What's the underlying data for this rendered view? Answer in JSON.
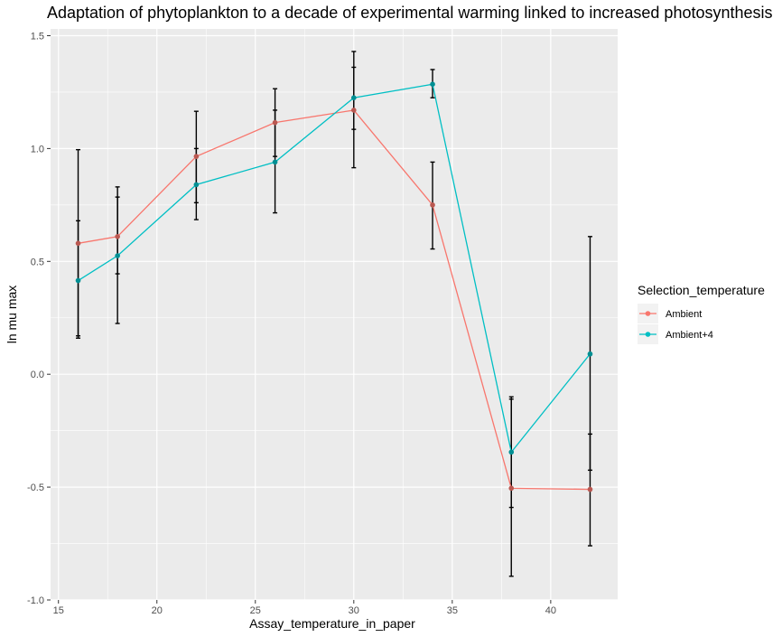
{
  "chart_data": {
    "type": "line",
    "title": "Adaptation of phytoplankton to a decade of experimental warming linked to increased photosynthesis",
    "xlabel": "Assay_temperature_in_paper",
    "ylabel": "ln mu max",
    "xlim": [
      14.6,
      43.4
    ],
    "ylim": [
      -1.0,
      1.53
    ],
    "x_ticks": [
      15,
      20,
      25,
      30,
      35,
      40
    ],
    "x_tick_labels": [
      "15",
      "20",
      "25",
      "30",
      "35",
      "40"
    ],
    "y_ticks": [
      -1.0,
      -0.5,
      0.0,
      0.5,
      1.0,
      1.5
    ],
    "y_tick_labels": [
      "-1.0",
      "-0.5",
      "0.0",
      "0.5",
      "1.0",
      "1.5"
    ],
    "grid": true,
    "legend": {
      "title": "Selection_temperature",
      "position": "right"
    },
    "series": [
      {
        "name": "Ambient",
        "color": "#F8766D",
        "x": [
          16,
          18,
          22,
          26,
          30,
          34,
          38,
          42
        ],
        "y": [
          0.58,
          0.61,
          0.965,
          1.115,
          1.17,
          0.75,
          -0.505,
          -0.51
        ],
        "error_low": [
          0.16,
          0.445,
          0.76,
          0.965,
          0.915,
          0.555,
          -0.895,
          -0.76
        ],
        "error_high": [
          0.995,
          0.785,
          1.165,
          1.265,
          1.43,
          0.94,
          -0.1,
          -0.265
        ]
      },
      {
        "name": "Ambient+4",
        "color": "#00BFC4",
        "x": [
          16,
          18,
          22,
          26,
          30,
          34,
          38,
          42
        ],
        "y": [
          0.415,
          0.525,
          0.84,
          0.94,
          1.225,
          1.285,
          -0.345,
          0.09
        ],
        "error_low": [
          0.17,
          0.225,
          0.685,
          0.715,
          1.085,
          1.225,
          -0.59,
          -0.425
        ],
        "error_high": [
          0.68,
          0.83,
          1.0,
          1.17,
          1.36,
          1.35,
          -0.11,
          0.61
        ]
      }
    ]
  }
}
